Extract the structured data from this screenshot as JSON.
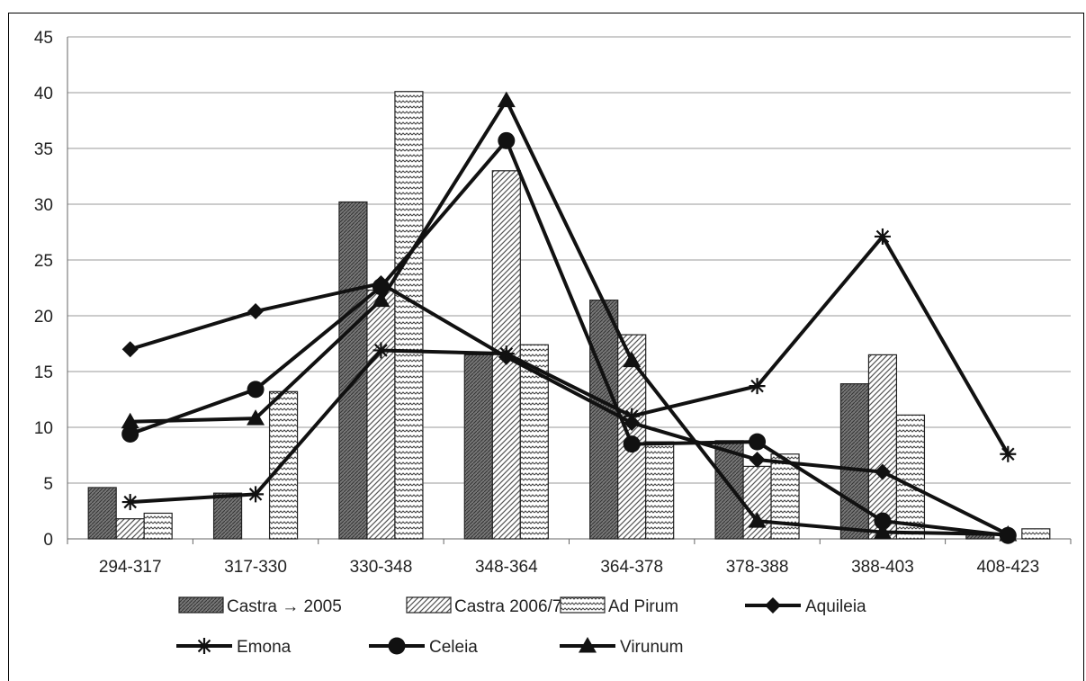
{
  "chart_data": {
    "type": "bar",
    "title": "",
    "xlabel": "",
    "ylabel": "",
    "ylim": [
      0,
      45
    ],
    "yticks": [
      0,
      5,
      10,
      15,
      20,
      25,
      30,
      35,
      40,
      45
    ],
    "grid": true,
    "legend_position": "bottom",
    "categories": [
      "294-317",
      "317-330",
      "330-348",
      "348-364",
      "364-378",
      "378-388",
      "388-403",
      "408-423"
    ],
    "bar_series": [
      {
        "name": "Castra → 2005",
        "pattern": "dense-hatch",
        "values": [
          4.6,
          4.1,
          30.2,
          16.5,
          21.4,
          8.8,
          13.9,
          0.5
        ]
      },
      {
        "name": "Castra 2006/7",
        "pattern": "diagonal",
        "values": [
          1.8,
          0,
          22.3,
          33.0,
          18.3,
          6.5,
          16.5,
          0
        ]
      },
      {
        "name": "Ad Pirum",
        "pattern": "wave",
        "values": [
          2.3,
          13.2,
          40.1,
          17.4,
          8.7,
          7.6,
          11.1,
          0.9
        ]
      }
    ],
    "line_series": [
      {
        "name": "Aquileia",
        "marker": "diamond",
        "values": [
          17.0,
          20.4,
          22.9,
          16.3,
          10.4,
          7.1,
          6.0,
          0.4
        ]
      },
      {
        "name": "Emona",
        "marker": "asterisk",
        "values": [
          3.3,
          4.0,
          16.9,
          16.6,
          11.0,
          13.7,
          27.1,
          7.6
        ]
      },
      {
        "name": "Celeia",
        "marker": "circle",
        "values": [
          9.4,
          13.4,
          22.6,
          35.7,
          8.5,
          8.7,
          1.6,
          0.3
        ]
      },
      {
        "name": "Virunum",
        "marker": "triangle",
        "values": [
          10.5,
          10.8,
          21.4,
          39.3,
          16.0,
          1.6,
          0.6,
          0.4
        ]
      }
    ]
  }
}
